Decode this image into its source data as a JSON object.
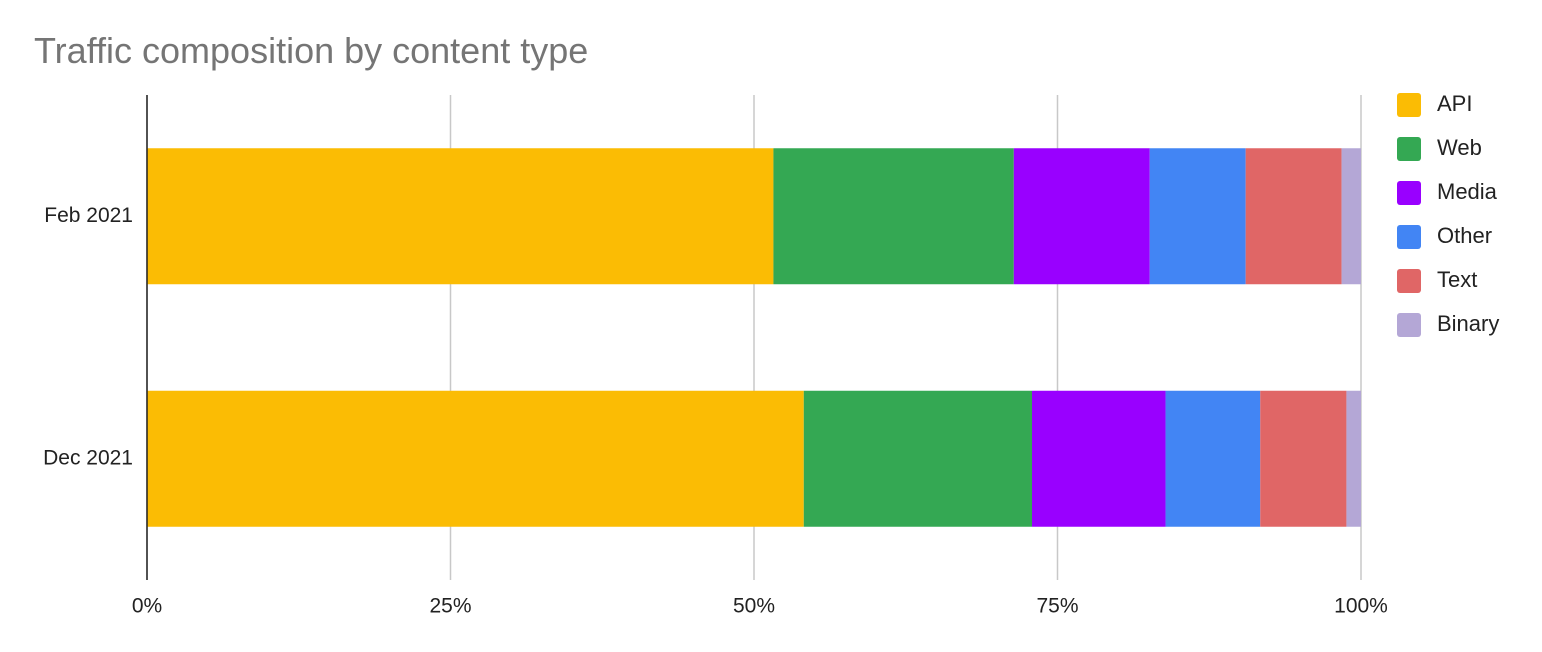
{
  "chart_data": {
    "type": "stacked-bar-horizontal",
    "title": "Traffic composition by content type",
    "categories": [
      "Feb 2021",
      "Dec 2021"
    ],
    "series": [
      {
        "name": "API",
        "color": "#fbbc04",
        "values": [
          51.6,
          54.1
        ]
      },
      {
        "name": "Web",
        "color": "#34a853",
        "values": [
          19.8,
          18.8
        ]
      },
      {
        "name": "Media",
        "color": "#9900ff",
        "values": [
          11.2,
          11.0
        ]
      },
      {
        "name": "Other",
        "color": "#4285f4",
        "values": [
          7.9,
          7.8
        ]
      },
      {
        "name": "Text",
        "color": "#e06666",
        "values": [
          7.9,
          7.1
        ]
      },
      {
        "name": "Binary",
        "color": "#b4a7d6",
        "values": [
          1.6,
          1.2
        ]
      }
    ],
    "xlim": [
      0,
      100
    ],
    "xticks": [
      {
        "value": 0,
        "label": "0%"
      },
      {
        "value": 25,
        "label": "25%"
      },
      {
        "value": 50,
        "label": "50%"
      },
      {
        "value": 75,
        "label": "75%"
      },
      {
        "value": 100,
        "label": "100%"
      }
    ],
    "grid": true,
    "legend": "right"
  }
}
